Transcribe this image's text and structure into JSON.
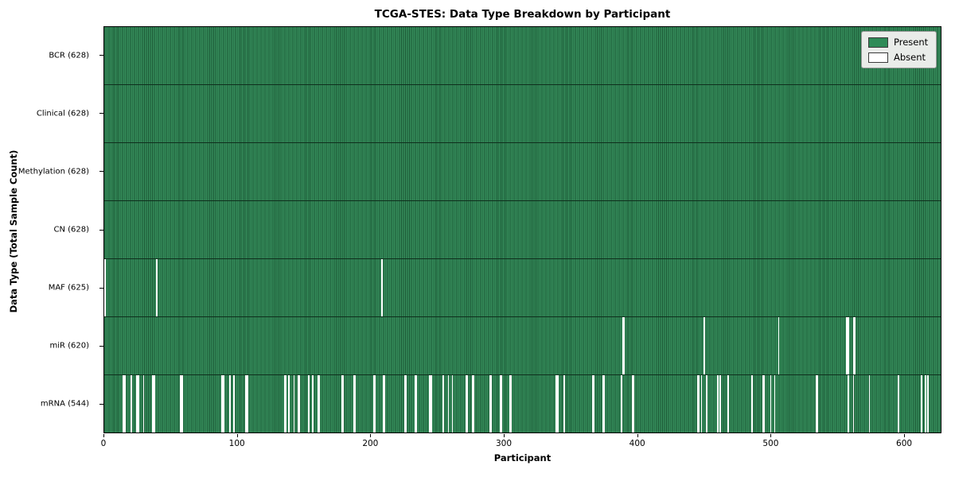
{
  "title": "TCGA-STES: Data Type Breakdown by Participant",
  "axes": {
    "xlabel": "Participant",
    "ylabel": "Data Type (Total Sample Count)"
  },
  "legend": {
    "items": [
      {
        "label": "Present",
        "color": "#2e8b57"
      },
      {
        "label": "Absent",
        "color": "#ffffff"
      }
    ]
  },
  "colors": {
    "bar_light": "#348a59",
    "bar_dark": "#1d5a37",
    "absent": "#ffffff",
    "row_separator": "#0f2f1d",
    "legend_bg": "#e9ece9",
    "legend_border": "#9a9a9a",
    "axis": "#000000"
  },
  "chart_data": {
    "type": "heatmap",
    "title": "TCGA-STES: Data Type Breakdown by Participant",
    "xlabel": "Participant",
    "ylabel": "Data Type (Total Sample Count)",
    "legend_position": "upper right",
    "grid": false,
    "n_participants": 628,
    "xlim": [
      0,
      628
    ],
    "x_ticks": [
      0,
      100,
      200,
      300,
      400,
      500,
      600
    ],
    "categories": [
      "BCR (628)",
      "Clinical (628)",
      "Methylation (628)",
      "CN (628)",
      "MAF (625)",
      "miR (620)",
      "mRNA (544)"
    ],
    "rows": [
      {
        "name": "BCR",
        "label": "BCR (628)",
        "present": 628,
        "absent_participants": []
      },
      {
        "name": "Clinical",
        "label": "Clinical (628)",
        "present": 628,
        "absent_participants": []
      },
      {
        "name": "Methylation",
        "label": "Methylation (628)",
        "present": 628,
        "absent_participants": []
      },
      {
        "name": "CN",
        "label": "CN (628)",
        "present": 628,
        "absent_participants": []
      },
      {
        "name": "MAF",
        "label": "MAF (625)",
        "present": 625,
        "absent_participants": [
          0,
          39,
          208
        ]
      },
      {
        "name": "miR",
        "label": "miR (620)",
        "present": 620,
        "absent_participants": [
          389,
          390,
          450,
          506,
          557,
          558,
          562,
          563
        ]
      },
      {
        "name": "mRNA",
        "label": "mRNA (544)",
        "present": 544,
        "absent_participants": [
          14,
          15,
          20,
          24,
          25,
          29,
          36,
          37,
          57,
          58,
          88,
          89,
          94,
          97,
          106,
          107,
          135,
          136,
          138,
          142,
          145,
          146,
          153,
          156,
          160,
          161,
          178,
          179,
          187,
          188,
          202,
          203,
          209,
          210,
          225,
          226,
          233,
          234,
          244,
          245,
          254,
          258,
          261,
          271,
          272,
          276,
          277,
          289,
          290,
          297,
          298,
          304,
          305,
          339,
          340,
          345,
          366,
          367,
          374,
          375,
          388,
          396,
          397,
          445,
          446,
          448,
          452,
          460,
          462,
          468,
          486,
          494,
          495,
          500,
          503,
          534,
          535,
          558,
          562,
          574,
          596,
          613,
          616,
          618
        ]
      }
    ]
  }
}
